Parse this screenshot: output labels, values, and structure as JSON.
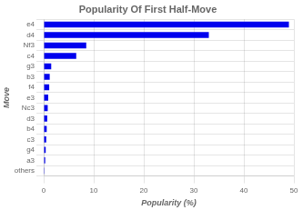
{
  "chart_data": {
    "type": "bar",
    "title": "Popularity Of First Half-Move",
    "xlabel": "Popularity (%)",
    "ylabel": "Move",
    "categories": [
      "e4",
      "d4",
      "Nf3",
      "c4",
      "g3",
      "b3",
      "f4",
      "e3",
      "Nc3",
      "d3",
      "b4",
      "c3",
      "g4",
      "a3",
      "others"
    ],
    "values": [
      49.0,
      33.0,
      8.5,
      6.5,
      1.5,
      1.2,
      1.1,
      0.9,
      0.8,
      0.7,
      0.6,
      0.5,
      0.4,
      0.3,
      0.15
    ],
    "color": "#0000ee",
    "xlim": [
      0,
      50
    ],
    "xticks": [
      0,
      10,
      20,
      30,
      40,
      50
    ],
    "grid": true,
    "orientation": "horizontal"
  }
}
